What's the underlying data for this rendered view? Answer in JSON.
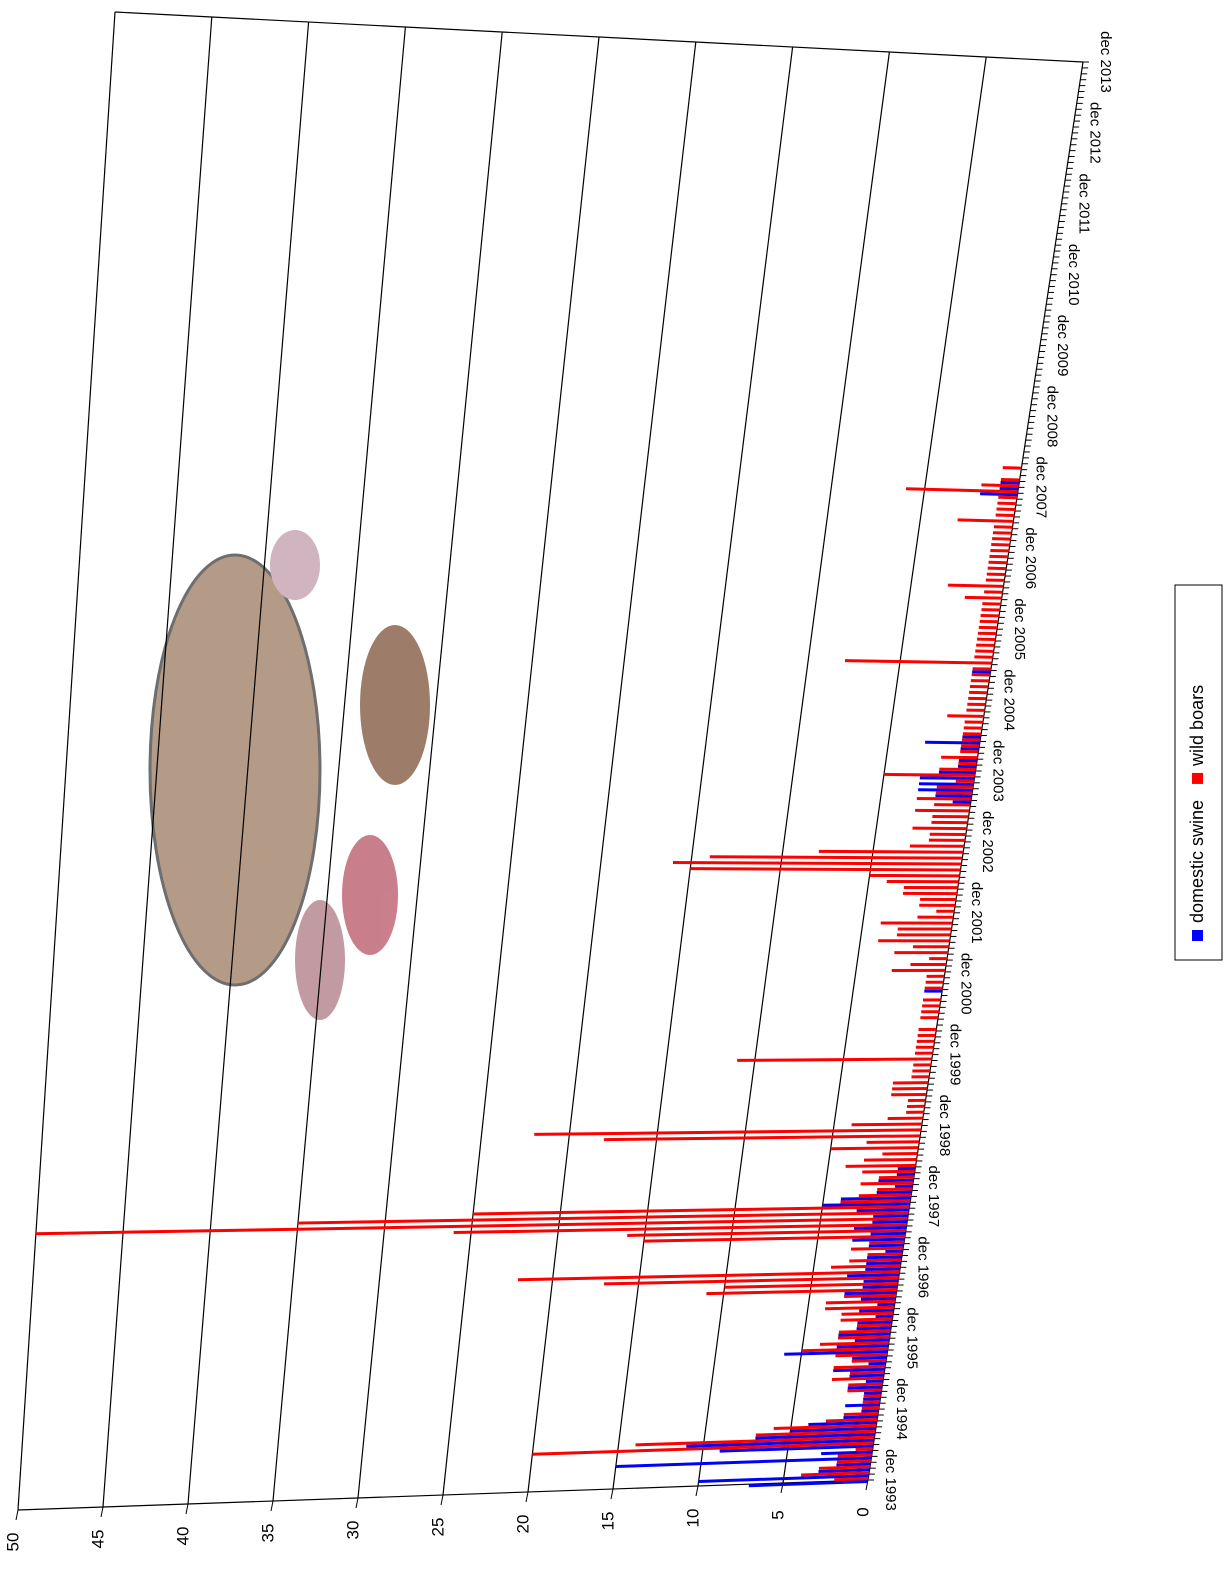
{
  "chart_data": {
    "type": "bar",
    "categories": [
      "dec 1993",
      null,
      null,
      null,
      null,
      null,
      null,
      null,
      null,
      null,
      null,
      null,
      "dec 1994",
      null,
      null,
      null,
      null,
      null,
      null,
      null,
      null,
      null,
      null,
      null,
      "dec 1995",
      null,
      null,
      null,
      null,
      null,
      null,
      null,
      null,
      null,
      null,
      null,
      "dec 1996",
      null,
      null,
      null,
      null,
      null,
      null,
      null,
      null,
      null,
      null,
      null,
      "dec 1997",
      null,
      null,
      null,
      null,
      null,
      null,
      null,
      null,
      null,
      null,
      null,
      "dec 1998",
      null,
      null,
      null,
      null,
      null,
      null,
      null,
      null,
      null,
      null,
      null,
      "dec 1999",
      null,
      null,
      null,
      null,
      null,
      null,
      null,
      null,
      null,
      null,
      null,
      "dec 2000",
      null,
      null,
      null,
      null,
      null,
      null,
      null,
      null,
      null,
      null,
      null,
      "dec 2001",
      null,
      null,
      null,
      null,
      null,
      null,
      null,
      null,
      null,
      null,
      null,
      "dec 2002",
      null,
      null,
      null,
      null,
      null,
      null,
      null,
      null,
      null,
      null,
      null,
      "dec 2003",
      null,
      null,
      null,
      null,
      null,
      null,
      null,
      null,
      null,
      null,
      null,
      "dec 2004",
      null,
      null,
      null,
      null,
      null,
      null,
      null,
      null,
      null,
      null,
      null,
      "dec 2005",
      null,
      null,
      null,
      null,
      null,
      null,
      null,
      null,
      null,
      null,
      null,
      "dec 2006",
      null,
      null,
      null,
      null,
      null,
      null,
      null,
      null,
      null,
      null,
      null,
      "dec 2007",
      null,
      null,
      null,
      null,
      null,
      null,
      null,
      null,
      null,
      null,
      null,
      "dec 2008",
      null,
      null,
      null,
      null,
      null,
      null,
      null,
      null,
      null,
      null,
      null,
      "dec 2009",
      null,
      null,
      null,
      null,
      null,
      null,
      null,
      null,
      null,
      null,
      null,
      "dec 2010",
      null,
      null,
      null,
      null,
      null,
      null,
      null,
      null,
      null,
      null,
      null,
      "dec 2011",
      null,
      null,
      null,
      null,
      null,
      null,
      null,
      null,
      null,
      null,
      null,
      "dec 2012",
      null,
      null,
      null,
      null,
      null,
      null,
      null,
      null,
      null,
      null,
      null,
      "dec 2013"
    ],
    "series": [
      {
        "name": "domestic swine",
        "color": "#0000ff",
        "values": [
          7,
          10,
          3,
          2,
          15,
          3,
          9,
          11,
          7,
          5,
          4,
          2,
          1,
          2,
          1,
          1,
          2,
          1,
          2,
          3,
          1,
          2,
          6,
          3,
          2,
          3,
          2,
          2,
          1,
          2,
          1,
          2,
          3,
          2,
          2,
          3,
          2,
          2,
          2,
          1,
          2,
          3,
          2,
          3,
          2,
          2,
          3,
          5,
          4,
          2,
          1,
          2,
          1,
          1,
          0,
          0,
          0,
          0,
          0,
          0,
          0,
          0,
          0,
          0,
          0,
          0,
          0,
          0,
          0,
          0,
          0,
          0,
          0,
          0,
          0,
          0,
          0,
          0,
          0,
          0,
          0,
          0,
          0,
          1,
          0,
          0,
          0,
          0,
          0,
          0,
          0,
          0,
          0,
          0,
          0,
          0,
          0,
          0,
          0,
          0,
          0,
          0,
          0,
          0,
          0,
          0,
          0,
          0,
          0,
          0,
          0,
          0,
          0,
          0,
          0,
          1,
          2,
          3,
          3,
          3,
          2,
          1,
          1,
          0,
          1,
          3,
          1,
          0,
          0,
          0,
          0,
          0,
          0,
          0,
          0,
          0,
          0,
          1,
          0,
          0,
          0,
          0,
          0,
          0,
          0,
          0,
          0,
          0,
          0,
          0,
          0,
          0,
          0,
          0,
          0,
          0,
          0,
          0,
          0,
          0,
          0,
          0,
          0,
          0,
          0,
          0,
          0,
          2,
          1,
          1,
          0,
          0,
          0,
          0,
          0,
          0,
          0,
          0,
          0,
          0,
          0,
          0,
          0,
          0,
          0,
          0,
          0,
          0,
          0,
          0,
          0,
          0,
          0,
          0,
          0,
          0,
          0,
          0,
          0,
          0,
          0,
          0,
          0,
          0,
          0,
          0,
          0,
          0,
          0,
          0,
          0,
          0,
          0,
          0,
          0,
          0,
          0,
          0,
          0,
          0,
          0,
          0,
          0,
          0,
          0,
          0,
          0,
          0,
          0,
          0,
          0,
          0,
          0,
          0,
          0,
          0,
          0,
          0,
          0,
          0,
          0
        ]
      },
      {
        "name": "wild boars",
        "color": "#ff0000",
        "values": [
          2,
          4,
          3,
          2,
          2,
          1,
          20,
          14,
          7,
          6,
          3,
          2,
          1,
          1,
          1,
          2,
          2,
          3,
          2,
          3,
          2,
          3,
          5,
          4,
          3,
          3,
          2,
          3,
          3,
          4,
          4,
          3,
          11,
          10,
          17,
          22,
          4,
          3,
          2,
          3,
          2,
          15,
          16,
          26,
          50,
          35,
          25,
          4,
          3,
          2,
          3,
          2,
          3,
          4,
          3,
          2,
          5,
          3,
          18,
          22,
          4,
          2,
          1,
          1,
          1,
          2,
          2,
          2,
          1,
          1,
          1,
          11,
          1,
          1,
          1,
          1,
          1,
          0,
          1,
          1,
          1,
          1,
          0,
          1,
          1,
          1,
          3,
          2,
          1,
          3,
          2,
          4,
          3,
          3,
          4,
          2,
          1,
          2,
          2,
          3,
          3,
          4,
          5,
          15,
          16,
          14,
          8,
          3,
          2,
          2,
          3,
          2,
          2,
          3,
          2,
          3,
          2,
          2,
          1,
          5,
          2,
          1,
          2,
          1,
          1,
          1,
          1,
          1,
          1,
          2,
          1,
          1,
          1,
          1,
          1,
          1,
          1,
          1,
          8,
          1,
          1,
          1,
          1,
          1,
          1,
          1,
          1,
          1,
          1,
          2,
          1,
          3,
          1,
          1,
          1,
          1,
          1,
          1,
          1,
          1,
          1,
          1,
          3,
          1,
          1,
          1,
          1,
          6,
          2,
          1,
          0,
          1,
          0,
          0,
          0,
          0,
          0,
          0,
          0,
          0,
          0,
          0,
          0,
          0,
          0,
          0,
          0,
          0,
          0,
          0,
          0,
          0,
          0,
          0,
          0,
          0,
          0,
          0,
          0,
          0,
          0,
          0,
          0,
          0,
          0,
          0,
          0,
          0,
          0,
          0,
          0,
          0,
          0,
          0,
          0,
          0,
          0,
          0,
          0,
          0,
          0,
          0,
          0,
          0,
          0,
          0,
          0,
          0,
          0,
          0,
          0,
          0,
          0,
          0,
          0,
          0,
          0,
          0,
          0,
          0,
          0
        ]
      }
    ],
    "ylim": [
      0,
      50
    ],
    "yticks": [
      0,
      5,
      10,
      15,
      20,
      25,
      30,
      35,
      40,
      45,
      50
    ],
    "grid": true
  }
}
